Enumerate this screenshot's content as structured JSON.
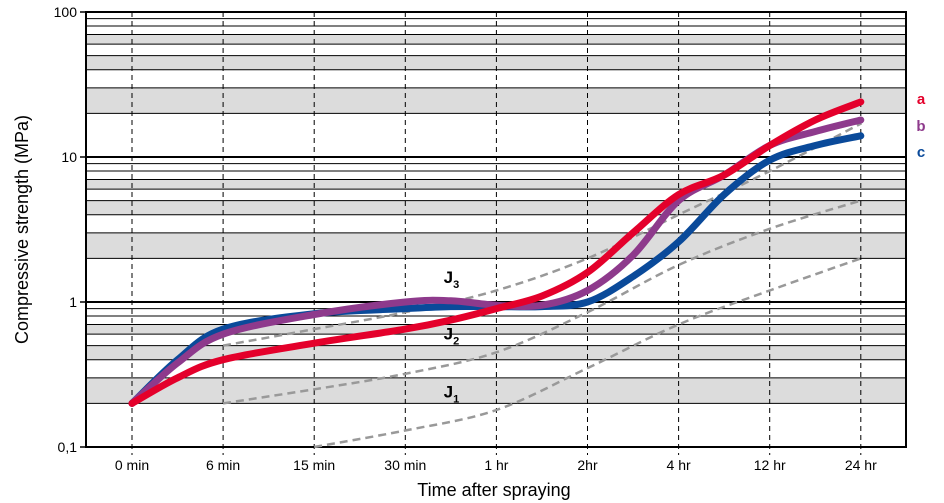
{
  "chart_data": {
    "type": "line",
    "xlabel": "Time after spraying",
    "ylabel": "Compressive strength (MPa)",
    "categories": [
      "0 min",
      "6 min",
      "15 min",
      "30 min",
      "1 hr",
      "2hr",
      "4 hr",
      "12 hr",
      "24 hr"
    ],
    "y_scale": "log",
    "ylim": [
      0.1,
      100
    ],
    "y_ticks": [
      {
        "value": 0.1,
        "label": "0,1"
      },
      {
        "value": 1,
        "label": "1"
      },
      {
        "value": 10,
        "label": "10"
      },
      {
        "value": 100,
        "label": "100"
      }
    ],
    "grid": "vertical dashed lines at each category; horizontal lines at each log decade step; alternating grey bands",
    "colors": {
      "a": "#e4002b",
      "b": "#8e3a8c",
      "c": "#0a4a9a",
      "envelope": "#999999",
      "band": "#dcdcdc"
    },
    "series": [
      {
        "name": "a",
        "x": [
          0,
          0.5,
          1,
          2,
          3,
          3.5,
          4,
          4.5,
          5,
          5.5,
          6,
          6.5,
          7,
          7.5,
          8
        ],
        "y": [
          0.2,
          0.3,
          0.4,
          0.52,
          0.65,
          0.75,
          0.9,
          1.1,
          1.6,
          3.0,
          5.5,
          7.5,
          12,
          18,
          24
        ]
      },
      {
        "name": "b",
        "x": [
          0,
          0.5,
          1,
          2,
          3,
          3.5,
          4,
          4.5,
          5,
          5.5,
          6,
          6.5,
          7,
          7.5,
          8
        ],
        "y": [
          0.2,
          0.38,
          0.6,
          0.82,
          1.0,
          1.02,
          0.95,
          0.95,
          1.2,
          2.1,
          5.0,
          7.5,
          12,
          15,
          18
        ]
      },
      {
        "name": "c",
        "x": [
          0,
          0.5,
          1,
          2,
          3,
          3.5,
          4,
          4.5,
          5,
          5.5,
          6,
          6.5,
          7,
          7.5,
          8
        ],
        "y": [
          0.2,
          0.4,
          0.65,
          0.83,
          0.9,
          0.93,
          0.93,
          0.93,
          1.0,
          1.5,
          2.6,
          5.5,
          9.5,
          12,
          14
        ]
      },
      {
        "name": "J3",
        "x": [
          1,
          2,
          3,
          4,
          5,
          6,
          7,
          8
        ],
        "y": [
          0.5,
          0.65,
          0.85,
          1.2,
          2.0,
          4.0,
          8.0,
          17
        ]
      },
      {
        "name": "J2",
        "x": [
          1,
          2,
          3,
          4,
          5,
          6,
          7,
          8
        ],
        "y": [
          0.2,
          0.25,
          0.32,
          0.45,
          0.85,
          1.8,
          3.2,
          5.0
        ]
      },
      {
        "name": "J1",
        "x": [
          2,
          3,
          4,
          5,
          6,
          7,
          8
        ],
        "y": [
          0.1,
          0.13,
          0.18,
          0.35,
          0.7,
          1.2,
          2.0
        ]
      }
    ],
    "annotations": [
      {
        "text": "J",
        "sub": "3",
        "x": 3.55,
        "y": 1.35
      },
      {
        "text": "J",
        "sub": "2",
        "x": 3.55,
        "y": 0.55
      },
      {
        "text": "J",
        "sub": "1",
        "x": 3.55,
        "y": 0.22
      }
    ],
    "legend": [
      {
        "label": "a",
        "color": "#e4002b"
      },
      {
        "label": "b",
        "color": "#8e3a8c"
      },
      {
        "label": "c",
        "color": "#0a4a9a"
      }
    ],
    "legend_position": "right"
  }
}
